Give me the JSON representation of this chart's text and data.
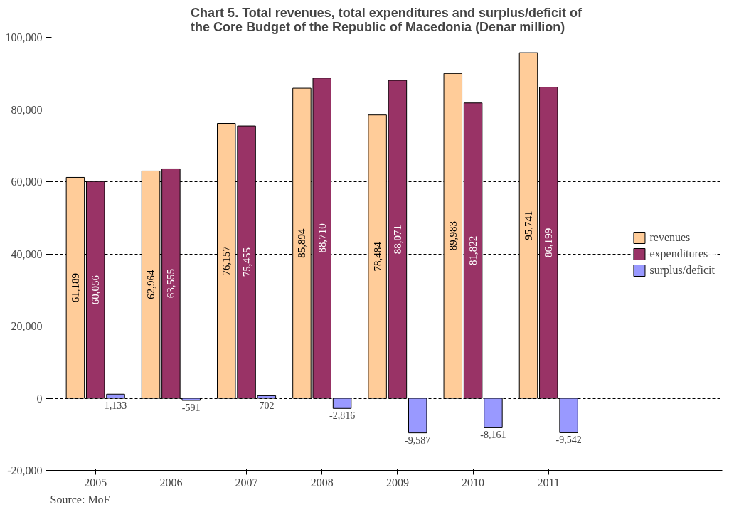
{
  "chart_data": {
    "type": "bar",
    "title": "Chart 5. Total revenues, total expenditures and surplus/deficit of\nthe Core Budget of the Republic of Macedonia (Denar million)",
    "categories": [
      "2005",
      "2006",
      "2007",
      "2008",
      "2009",
      "2010",
      "2011"
    ],
    "series": [
      {
        "name": "revenues",
        "color": "#ffcc99",
        "values": [
          61189,
          62964,
          76157,
          85894,
          78484,
          89983,
          95741
        ],
        "value_labels": [
          "61,189",
          "62,964",
          "76,157",
          "85,894",
          "78,484",
          "89,983",
          "95,741"
        ]
      },
      {
        "name": "expenditures",
        "color": "#993366",
        "values": [
          60056,
          63555,
          75455,
          88710,
          88071,
          81822,
          86199
        ],
        "value_labels": [
          "60,056",
          "63,555",
          "75,455",
          "88,710",
          "88,071",
          "81,822",
          "86,199"
        ]
      },
      {
        "name": "surplus/deficit",
        "color": "#9999ff",
        "values": [
          1133,
          -591,
          702,
          -2816,
          -9587,
          -8161,
          -9542
        ],
        "value_labels": [
          "1,133",
          "-591",
          "702",
          "-2,816",
          "-9,587",
          "-8,161",
          "-9,542"
        ]
      }
    ],
    "ylim": [
      -20000,
      100000
    ],
    "yticks": [
      {
        "value": -20000,
        "label": "-20,000"
      },
      {
        "value": 0,
        "label": "0"
      },
      {
        "value": 20000,
        "label": "20,000"
      },
      {
        "value": 40000,
        "label": "40,000"
      },
      {
        "value": 60000,
        "label": "60,000"
      },
      {
        "value": 80000,
        "label": "80,000"
      },
      {
        "value": 100000,
        "label": "100,000"
      }
    ],
    "grid": "y",
    "legend": "right",
    "annotations": [
      "Source: MoF"
    ]
  }
}
